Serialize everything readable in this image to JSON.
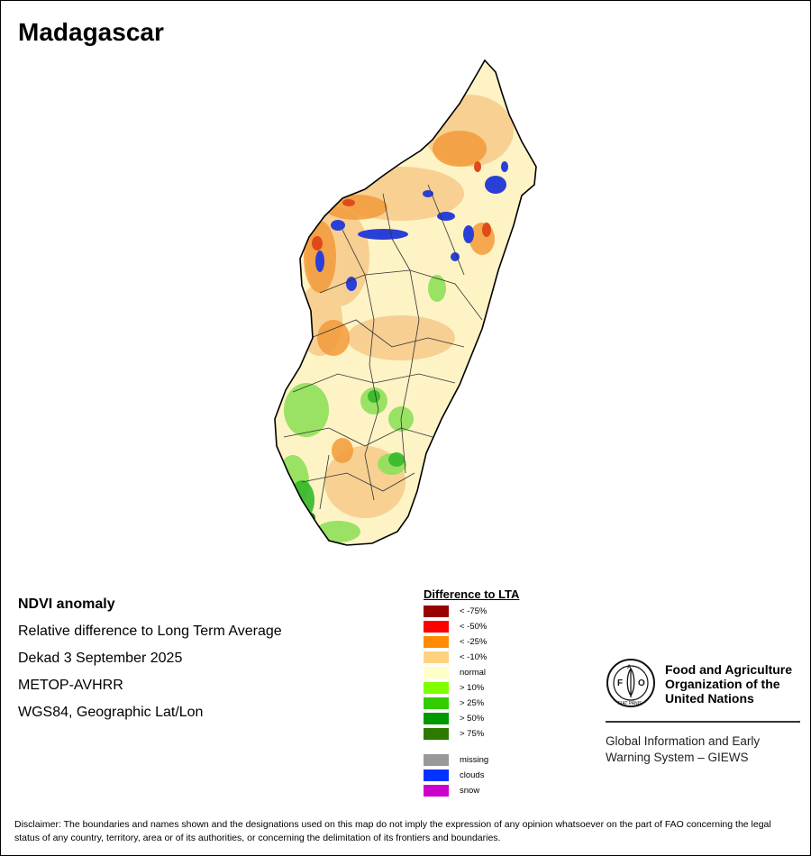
{
  "title": "Madagascar",
  "meta": {
    "product": "NDVI anomaly",
    "description": "Relative difference to Long Term Average",
    "period": "Dekad 3 September 2025",
    "sensor": "METOP-AVHRR",
    "projection": "WGS84, Geographic Lat/Lon"
  },
  "legend": {
    "title": "Difference to LTA",
    "classes": [
      {
        "label": "< -75%",
        "color": "#990000"
      },
      {
        "label": "< -50%",
        "color": "#ff0000"
      },
      {
        "label": "< -25%",
        "color": "#ff8c00"
      },
      {
        "label": "< -10%",
        "color": "#ffd27f"
      },
      {
        "label": "normal",
        "color": "#ffffc8"
      },
      {
        "label": "> 10%",
        "color": "#80ff00"
      },
      {
        "label": "> 25%",
        "color": "#33cc00"
      },
      {
        "label": "> 50%",
        "color": "#009900"
      },
      {
        "label": "> 75%",
        "color": "#2d7a00"
      }
    ],
    "special": [
      {
        "label": "missing",
        "color": "#999999"
      },
      {
        "label": "clouds",
        "color": "#0033ff"
      },
      {
        "label": "snow",
        "color": "#cc00cc"
      }
    ]
  },
  "logo": {
    "org_name": "Food and Agriculture Organization of the United Nations",
    "org_line1": "Food and Agriculture",
    "org_line2": "Organization of the",
    "org_line3": "United Nations",
    "giews_line1": "Global Information and Early",
    "giews_line2": "Warning System – GIEWS",
    "emblem_text": "FIAT PANIS"
  },
  "disclaimer": "Disclaimer: The boundaries and names shown and the designations used on this map do not imply the expression of any opinion whatsoever on the part of FAO concerning the legal status of any country, territory, area or of its authorities, or concerning the delimitation of its frontiers and boundaries."
}
